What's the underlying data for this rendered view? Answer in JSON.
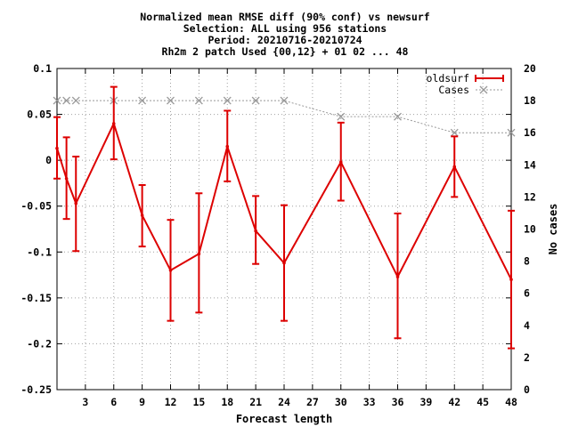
{
  "chart_data": {
    "type": "line",
    "title_lines": [
      "Normalized mean RMSE diff (90% conf) vs newsurf",
      "Selection: ALL using   956 stations",
      "Period: 20210716-20210724",
      "Rh2m 2 patch   Used {00,12} + 01 02 ... 48"
    ],
    "xlabel": "Forecast length",
    "ylabel": "",
    "y2label": "No cases",
    "xlim": [
      0,
      48
    ],
    "ylim": [
      -0.25,
      0.1
    ],
    "y2lim": [
      0,
      20
    ],
    "xticks": [
      3,
      6,
      9,
      12,
      15,
      18,
      21,
      24,
      27,
      30,
      33,
      36,
      39,
      42,
      45,
      48
    ],
    "yticks": [
      -0.25,
      -0.2,
      -0.15,
      -0.1,
      -0.05,
      0,
      0.05,
      0.1
    ],
    "ytick_labels": [
      "-0.25",
      "-0.2",
      "-0.15",
      "-0.1",
      "-0.05",
      "0",
      "0.05",
      "0.1"
    ],
    "y2ticks": [
      0,
      2,
      4,
      6,
      8,
      10,
      12,
      14,
      16,
      18,
      20
    ],
    "grid": true,
    "legend_position": "top-right",
    "series": [
      {
        "name": "oldsurf",
        "axis": "y1",
        "color": "#dd0000",
        "x": [
          0,
          1,
          2,
          6,
          9,
          12,
          15,
          18,
          21,
          24,
          30,
          36,
          42,
          48
        ],
        "y": [
          0.013,
          -0.02,
          -0.047,
          0.04,
          -0.06,
          -0.12,
          -0.102,
          0.015,
          -0.077,
          -0.112,
          -0.002,
          -0.127,
          -0.007,
          -0.13
        ],
        "err_low": [
          -0.02,
          -0.064,
          -0.099,
          0.001,
          -0.094,
          -0.175,
          -0.166,
          -0.023,
          -0.113,
          -0.175,
          -0.044,
          -0.194,
          -0.04,
          -0.205
        ],
        "err_high": [
          0.047,
          0.025,
          0.004,
          0.08,
          -0.027,
          -0.065,
          -0.036,
          0.054,
          -0.039,
          -0.049,
          0.041,
          -0.058,
          0.026,
          -0.055
        ]
      },
      {
        "name": "Cases",
        "axis": "y2",
        "color": "#999999",
        "x": [
          0,
          1,
          2,
          6,
          9,
          12,
          15,
          18,
          21,
          24,
          30,
          36,
          42,
          48
        ],
        "y": [
          18,
          18,
          18,
          18,
          18,
          18,
          18,
          18,
          18,
          18,
          17,
          17,
          16,
          16
        ]
      }
    ]
  }
}
